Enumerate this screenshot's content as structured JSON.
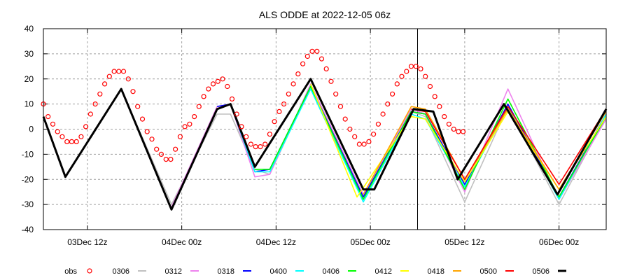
{
  "chart_data": {
    "type": "line",
    "title": "ALS ODDE at 2022-12-05 06z",
    "xlabel": "",
    "ylabel": "",
    "x_units": "hours since 03Dec 00z",
    "xlim": [
      6.4,
      78
    ],
    "ylim": [
      -40,
      40
    ],
    "yticks": [
      40,
      30,
      20,
      10,
      0,
      -10,
      -20,
      -30,
      -40
    ],
    "xticks": [
      {
        "h": 12,
        "label": "03Dec 12z"
      },
      {
        "h": 24,
        "label": "04Dec 00z"
      },
      {
        "h": 36,
        "label": "04Dec 12z"
      },
      {
        "h": 48,
        "label": "05Dec 00z"
      },
      {
        "h": 60,
        "label": "05Dec 12z"
      },
      {
        "h": 72,
        "label": "06Dec 00z"
      }
    ],
    "grid": true,
    "analysis_time_marker_h": 54,
    "legend_position": "bottom",
    "observations": {
      "name": "obs",
      "color": "#ff0000",
      "points": [
        [
          6.4,
          10
        ],
        [
          7,
          5
        ],
        [
          7.6,
          2
        ],
        [
          8.2,
          -1
        ],
        [
          8.8,
          -3
        ],
        [
          9.4,
          -5
        ],
        [
          10,
          -5
        ],
        [
          10.6,
          -5
        ],
        [
          11.2,
          -3
        ],
        [
          11.8,
          1
        ],
        [
          12.4,
          6
        ],
        [
          13,
          10
        ],
        [
          13.6,
          14
        ],
        [
          14.2,
          18
        ],
        [
          14.8,
          21
        ],
        [
          15.4,
          23
        ],
        [
          16,
          23
        ],
        [
          16.6,
          23
        ],
        [
          17.2,
          20
        ],
        [
          17.8,
          15
        ],
        [
          18.4,
          9
        ],
        [
          19,
          4
        ],
        [
          19.6,
          -1
        ],
        [
          20.2,
          -4
        ],
        [
          20.8,
          -8
        ],
        [
          21.4,
          -10
        ],
        [
          22,
          -12
        ],
        [
          22.6,
          -12
        ],
        [
          23.2,
          -8
        ],
        [
          23.8,
          -3
        ],
        [
          24.4,
          1
        ],
        [
          25,
          2
        ],
        [
          25.6,
          5
        ],
        [
          26.2,
          9
        ],
        [
          26.8,
          13
        ],
        [
          27.4,
          16
        ],
        [
          28,
          18
        ],
        [
          28.6,
          19
        ],
        [
          29.2,
          20
        ],
        [
          29.8,
          17
        ],
        [
          30.4,
          12
        ],
        [
          31,
          6
        ],
        [
          31.6,
          1
        ],
        [
          32.2,
          -3
        ],
        [
          32.8,
          -6
        ],
        [
          33.4,
          -7
        ],
        [
          34,
          -7
        ],
        [
          34.6,
          -6
        ],
        [
          35.2,
          -2
        ],
        [
          35.8,
          3
        ],
        [
          36.4,
          7
        ],
        [
          37,
          10
        ],
        [
          37.6,
          14
        ],
        [
          38.2,
          18
        ],
        [
          38.8,
          22
        ],
        [
          39.4,
          26
        ],
        [
          40,
          29
        ],
        [
          40.6,
          31
        ],
        [
          41.2,
          31
        ],
        [
          41.8,
          28
        ],
        [
          42.4,
          24
        ],
        [
          43,
          19
        ],
        [
          43.6,
          14
        ],
        [
          44.2,
          9
        ],
        [
          44.8,
          4
        ],
        [
          45.4,
          0
        ],
        [
          46,
          -3
        ],
        [
          46.6,
          -6
        ],
        [
          47.2,
          -6
        ],
        [
          47.8,
          -5
        ],
        [
          48.4,
          -2
        ],
        [
          49,
          2
        ],
        [
          49.6,
          6
        ],
        [
          50.2,
          10
        ],
        [
          50.8,
          14
        ],
        [
          51.4,
          18
        ],
        [
          52,
          21
        ],
        [
          52.6,
          23
        ],
        [
          53.2,
          25
        ],
        [
          53.8,
          25
        ],
        [
          54.4,
          24
        ],
        [
          55,
          21
        ],
        [
          55.6,
          17
        ],
        [
          56.2,
          13
        ],
        [
          56.8,
          9
        ],
        [
          57.4,
          5
        ],
        [
          58,
          2
        ],
        [
          58.6,
          0
        ],
        [
          59.2,
          -1
        ],
        [
          59.8,
          -1
        ]
      ]
    },
    "series": [
      {
        "name": "0306",
        "color": "#c0c0c0",
        "points": [
          [
            6.4,
            5
          ],
          [
            9.2,
            -19
          ],
          [
            16.3,
            16
          ],
          [
            22.7,
            -30
          ],
          [
            28.5,
            6
          ],
          [
            30.2,
            6
          ],
          [
            33.3,
            -16
          ],
          [
            35.2,
            -18
          ],
          [
            40.4,
            17
          ],
          [
            47.1,
            -27
          ],
          [
            53.2,
            7
          ],
          [
            55,
            5
          ],
          [
            60,
            -29
          ],
          [
            65.5,
            9
          ],
          [
            72,
            -30
          ],
          [
            78,
            5
          ]
        ]
      },
      {
        "name": "0312",
        "color": "#ee82ee",
        "points": [
          [
            22.7,
            -31
          ],
          [
            28.5,
            9
          ],
          [
            30.2,
            10
          ],
          [
            33.3,
            -19
          ],
          [
            35.2,
            -18
          ],
          [
            40.4,
            18
          ],
          [
            47.1,
            -26
          ],
          [
            53.2,
            8
          ],
          [
            55,
            6
          ],
          [
            60,
            -25
          ],
          [
            65.5,
            16
          ],
          [
            72,
            -28
          ],
          [
            78,
            4
          ]
        ]
      },
      {
        "name": "0318",
        "color": "#0000ff",
        "points": [
          [
            28.5,
            9
          ],
          [
            30.2,
            10
          ],
          [
            33.3,
            -17
          ],
          [
            35.2,
            -16
          ],
          [
            40.4,
            17
          ],
          [
            47.1,
            -27
          ],
          [
            53.2,
            7
          ],
          [
            55,
            6
          ],
          [
            60,
            -22
          ],
          [
            65.5,
            10
          ],
          [
            72,
            -27
          ],
          [
            78,
            6
          ]
        ]
      },
      {
        "name": "0400",
        "color": "#00ffff",
        "points": [
          [
            30.2,
            10
          ],
          [
            33.3,
            -17
          ],
          [
            35.2,
            -17
          ],
          [
            40.4,
            16
          ],
          [
            47.1,
            -29
          ],
          [
            53.2,
            6
          ],
          [
            55,
            4
          ],
          [
            60,
            -23
          ],
          [
            65.5,
            9
          ],
          [
            72,
            -28
          ],
          [
            78,
            6
          ]
        ]
      },
      {
        "name": "0406",
        "color": "#00ff00",
        "points": [
          [
            33.3,
            -16
          ],
          [
            35.2,
            -16
          ],
          [
            40.4,
            17
          ],
          [
            47.1,
            -28
          ],
          [
            53.2,
            7
          ],
          [
            55,
            6
          ],
          [
            60,
            -24
          ],
          [
            65.5,
            12
          ],
          [
            72,
            -27
          ],
          [
            78,
            5
          ]
        ]
      },
      {
        "name": "0412",
        "color": "#ffff00",
        "points": [
          [
            40.4,
            18
          ],
          [
            46.3,
            -27
          ],
          [
            53.2,
            5
          ],
          [
            55,
            4
          ],
          [
            60,
            -21
          ],
          [
            65.5,
            7
          ],
          [
            72,
            -24
          ],
          [
            78,
            5
          ]
        ]
      },
      {
        "name": "0418",
        "color": "#ffa500",
        "points": [
          [
            47.1,
            -26
          ],
          [
            53.2,
            9
          ],
          [
            55,
            8
          ],
          [
            60,
            -20
          ],
          [
            65.5,
            8
          ],
          [
            72,
            -24
          ],
          [
            78,
            7
          ]
        ]
      },
      {
        "name": "0500",
        "color": "#ff0000",
        "points": [
          [
            53.2,
            8
          ],
          [
            55,
            7
          ],
          [
            60,
            -20
          ],
          [
            65.5,
            9
          ],
          [
            72,
            -22
          ],
          [
            78,
            8
          ]
        ]
      },
      {
        "name": "0506",
        "color": "#000000",
        "points": [
          [
            6.4,
            5
          ],
          [
            9.2,
            -19
          ],
          [
            16.3,
            16
          ],
          [
            22.7,
            -32
          ],
          [
            28.5,
            8
          ],
          [
            30.2,
            10
          ],
          [
            33.3,
            -15
          ],
          [
            40.4,
            20
          ],
          [
            47.1,
            -24
          ],
          [
            48.5,
            -24
          ],
          [
            53.5,
            8
          ],
          [
            56,
            7
          ],
          [
            59.1,
            -20
          ],
          [
            65,
            10
          ],
          [
            71.8,
            -26
          ],
          [
            78,
            8
          ]
        ]
      }
    ]
  }
}
